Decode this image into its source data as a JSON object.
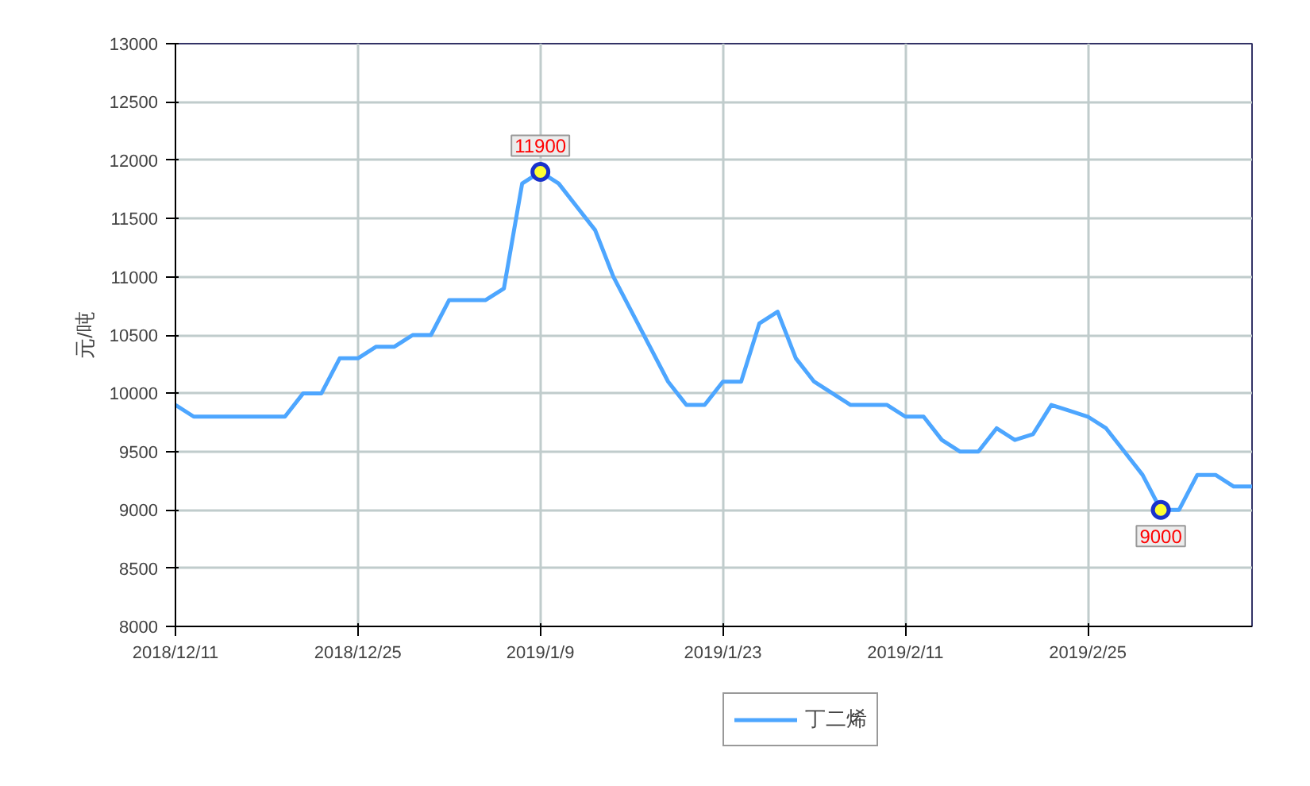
{
  "chart_data": {
    "type": "line",
    "ylabel": "元/吨",
    "categories": [
      "2018/12/11",
      null,
      null,
      null,
      null,
      null,
      null,
      null,
      null,
      null,
      "2018/12/25",
      null,
      null,
      null,
      null,
      null,
      null,
      null,
      null,
      null,
      "2019/1/9",
      null,
      null,
      null,
      null,
      null,
      null,
      null,
      null,
      null,
      "2019/1/23",
      null,
      null,
      null,
      null,
      null,
      null,
      null,
      null,
      null,
      "2019/2/11",
      null,
      null,
      null,
      null,
      null,
      null,
      null,
      null,
      null,
      "2019/2/25",
      null,
      null,
      null,
      null,
      null,
      null,
      null,
      null,
      null
    ],
    "series": [
      {
        "name": "丁二烯",
        "color": "#4da6ff",
        "values": [
          9900,
          9800,
          9800,
          9800,
          9800,
          9800,
          9800,
          10000,
          10000,
          10300,
          10300,
          10400,
          10400,
          10500,
          10500,
          10800,
          10800,
          10800,
          10900,
          11800,
          11900,
          11800,
          11600,
          11400,
          11000,
          10700,
          10400,
          10100,
          9900,
          9900,
          10100,
          10100,
          10600,
          10700,
          10300,
          10100,
          10000,
          9900,
          9900,
          9900,
          9800,
          9800,
          9600,
          9500,
          9500,
          9700,
          9600,
          9650,
          9900,
          9850,
          9800,
          9700,
          9500,
          9300,
          9000,
          9000,
          9300,
          9300,
          9200,
          9200
        ],
        "value_labels": [
          null,
          null,
          null,
          null,
          null,
          null,
          null,
          null,
          null,
          null,
          null,
          null,
          null,
          null,
          null,
          null,
          null,
          null,
          null,
          null,
          "11900",
          null,
          null,
          null,
          null,
          null,
          null,
          null,
          null,
          null,
          null,
          null,
          null,
          null,
          null,
          null,
          null,
          null,
          null,
          null,
          null,
          null,
          null,
          null,
          null,
          null,
          null,
          null,
          null,
          null,
          null,
          null,
          null,
          null,
          "9000",
          null,
          null,
          null,
          null,
          null
        ]
      }
    ],
    "ylim": [
      8000,
      13000
    ],
    "yticks": [
      8000,
      8500,
      9000,
      9500,
      10000,
      10500,
      11000,
      11500,
      12000,
      12500,
      13000
    ],
    "grid": true,
    "legend": "bottom",
    "marker": "none",
    "line_style": "solid"
  }
}
